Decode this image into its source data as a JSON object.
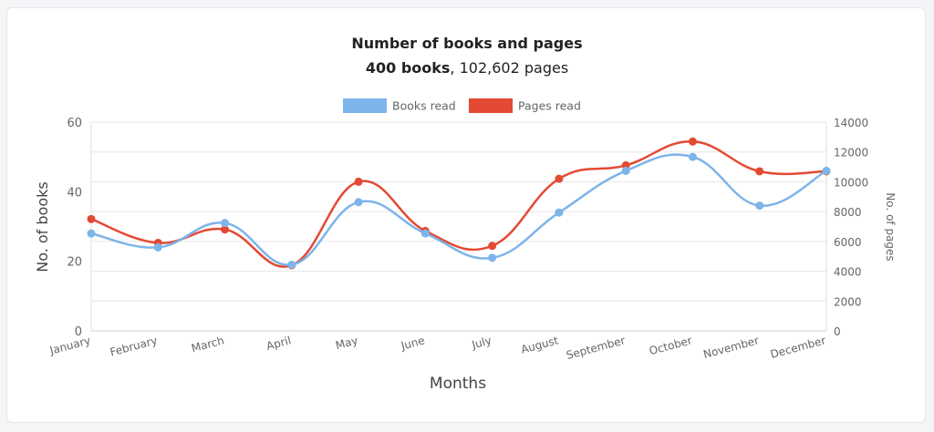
{
  "chart_data": {
    "type": "line",
    "title": "Number of books and pages",
    "subtitle": {
      "books": "400 books",
      "separator": ",",
      "pages": "102,602 pages"
    },
    "categories": [
      "January",
      "February",
      "March",
      "April",
      "May",
      "June",
      "July",
      "August",
      "September",
      "October",
      "November",
      "December"
    ],
    "series": [
      {
        "name": "Books read",
        "axis": "left",
        "color": "#7db4ea",
        "values": [
          28,
          24,
          31,
          19,
          37,
          28,
          21,
          34,
          46,
          50,
          36,
          46
        ]
      },
      {
        "name": "Pages read",
        "axis": "right",
        "color": "#e34a33",
        "values": [
          7500,
          5900,
          6800,
          4400,
          10000,
          6700,
          5700,
          10200,
          11100,
          12700,
          10700,
          10700
        ]
      }
    ],
    "xlabel": "Months",
    "ylabel": "No. of books",
    "y2label": "No. of pages",
    "ylim": [
      0,
      60
    ],
    "y2lim": [
      0,
      14000
    ],
    "yticks": [
      "0",
      "20",
      "40",
      "60"
    ],
    "y2ticks": [
      "0",
      "2000",
      "4000",
      "6000",
      "8000",
      "10000",
      "12000",
      "14000"
    ],
    "grid": true,
    "legend": "top-center"
  }
}
